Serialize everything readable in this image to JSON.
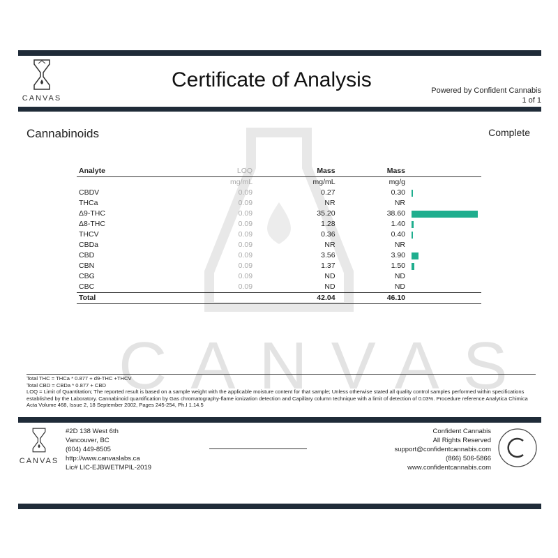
{
  "header": {
    "title": "Certificate of Analysis",
    "powered_by": "Powered by Confident Cannabis",
    "page": "1 of 1",
    "logo_text": "CANVAS"
  },
  "section": {
    "title": "Cannabinoids",
    "status": "Complete"
  },
  "watermark": "CANVAS",
  "table": {
    "headers": {
      "analyte": "Analyte",
      "loq": "LOQ",
      "mass1": "Mass",
      "mass2": "Mass"
    },
    "units": {
      "loq": "mg/mL",
      "mass1": "mg/mL",
      "mass2": "mg/g"
    },
    "rows": [
      {
        "analyte": "CBDV",
        "loq": "0.09",
        "mgml": "0.27",
        "mgg": "0.30",
        "bar": 0.3
      },
      {
        "analyte": "THCa",
        "loq": "0.09",
        "mgml": "NR",
        "mgg": "NR",
        "bar": 0
      },
      {
        "analyte": "Δ9-THC",
        "loq": "0.09",
        "mgml": "35.20",
        "mgg": "38.60",
        "bar": 38.6
      },
      {
        "analyte": "Δ8-THC",
        "loq": "0.09",
        "mgml": "1.28",
        "mgg": "1.40",
        "bar": 1.4
      },
      {
        "analyte": "THCV",
        "loq": "0.09",
        "mgml": "0.36",
        "mgg": "0.40",
        "bar": 0.4
      },
      {
        "analyte": "CBDa",
        "loq": "0.09",
        "mgml": "NR",
        "mgg": "NR",
        "bar": 0
      },
      {
        "analyte": "CBD",
        "loq": "0.09",
        "mgml": "3.56",
        "mgg": "3.90",
        "bar": 3.9
      },
      {
        "analyte": "CBN",
        "loq": "0.09",
        "mgml": "1.37",
        "mgg": "1.50",
        "bar": 1.5
      },
      {
        "analyte": "CBG",
        "loq": "0.09",
        "mgml": "ND",
        "mgg": "ND",
        "bar": 0
      },
      {
        "analyte": "CBC",
        "loq": "0.09",
        "mgml": "ND",
        "mgg": "ND",
        "bar": 0
      }
    ],
    "total": {
      "label": "Total",
      "mgml": "42.04",
      "mgg": "46.10"
    },
    "bar_color": "#1fae8e"
  },
  "notes": [
    "Total THC = THCa * 0.877 + d9-THC +THCV",
    "Total CBD = CBDa * 0.877 + CBD",
    "LOQ = Limit of Quantitation; The reported result is based on a sample weight with the applicable moisture content for that sample; Unless otherwise stated all quality control samples performed within specifications established by the Laboratory. Cannabinoid quantification by Gas chromatography-flame ionization detection and Capillary column technique with a limit of detection of 0.03%. Procedure reference Analytica Chimica Acta Volume 468, Issue 2, 18 September 2002, Pages 245-254, Ph.I 1.14.5"
  ],
  "footer": {
    "left": [
      "#2D 138 West 6th",
      "Vancouver, BC",
      "(604) 449-8505",
      "http://www.canvaslabs.ca",
      "Lic# LIC-EJBWETMPIL-2019"
    ],
    "right": [
      "Confident Cannabis",
      "All Rights Reserved",
      "support@confidentcannabis.com",
      "(866) 506-5866",
      "www.confidentcannabis.com"
    ],
    "logo_text": "CANVAS",
    "seal_text": "CONFIDENT CANNABIS"
  }
}
